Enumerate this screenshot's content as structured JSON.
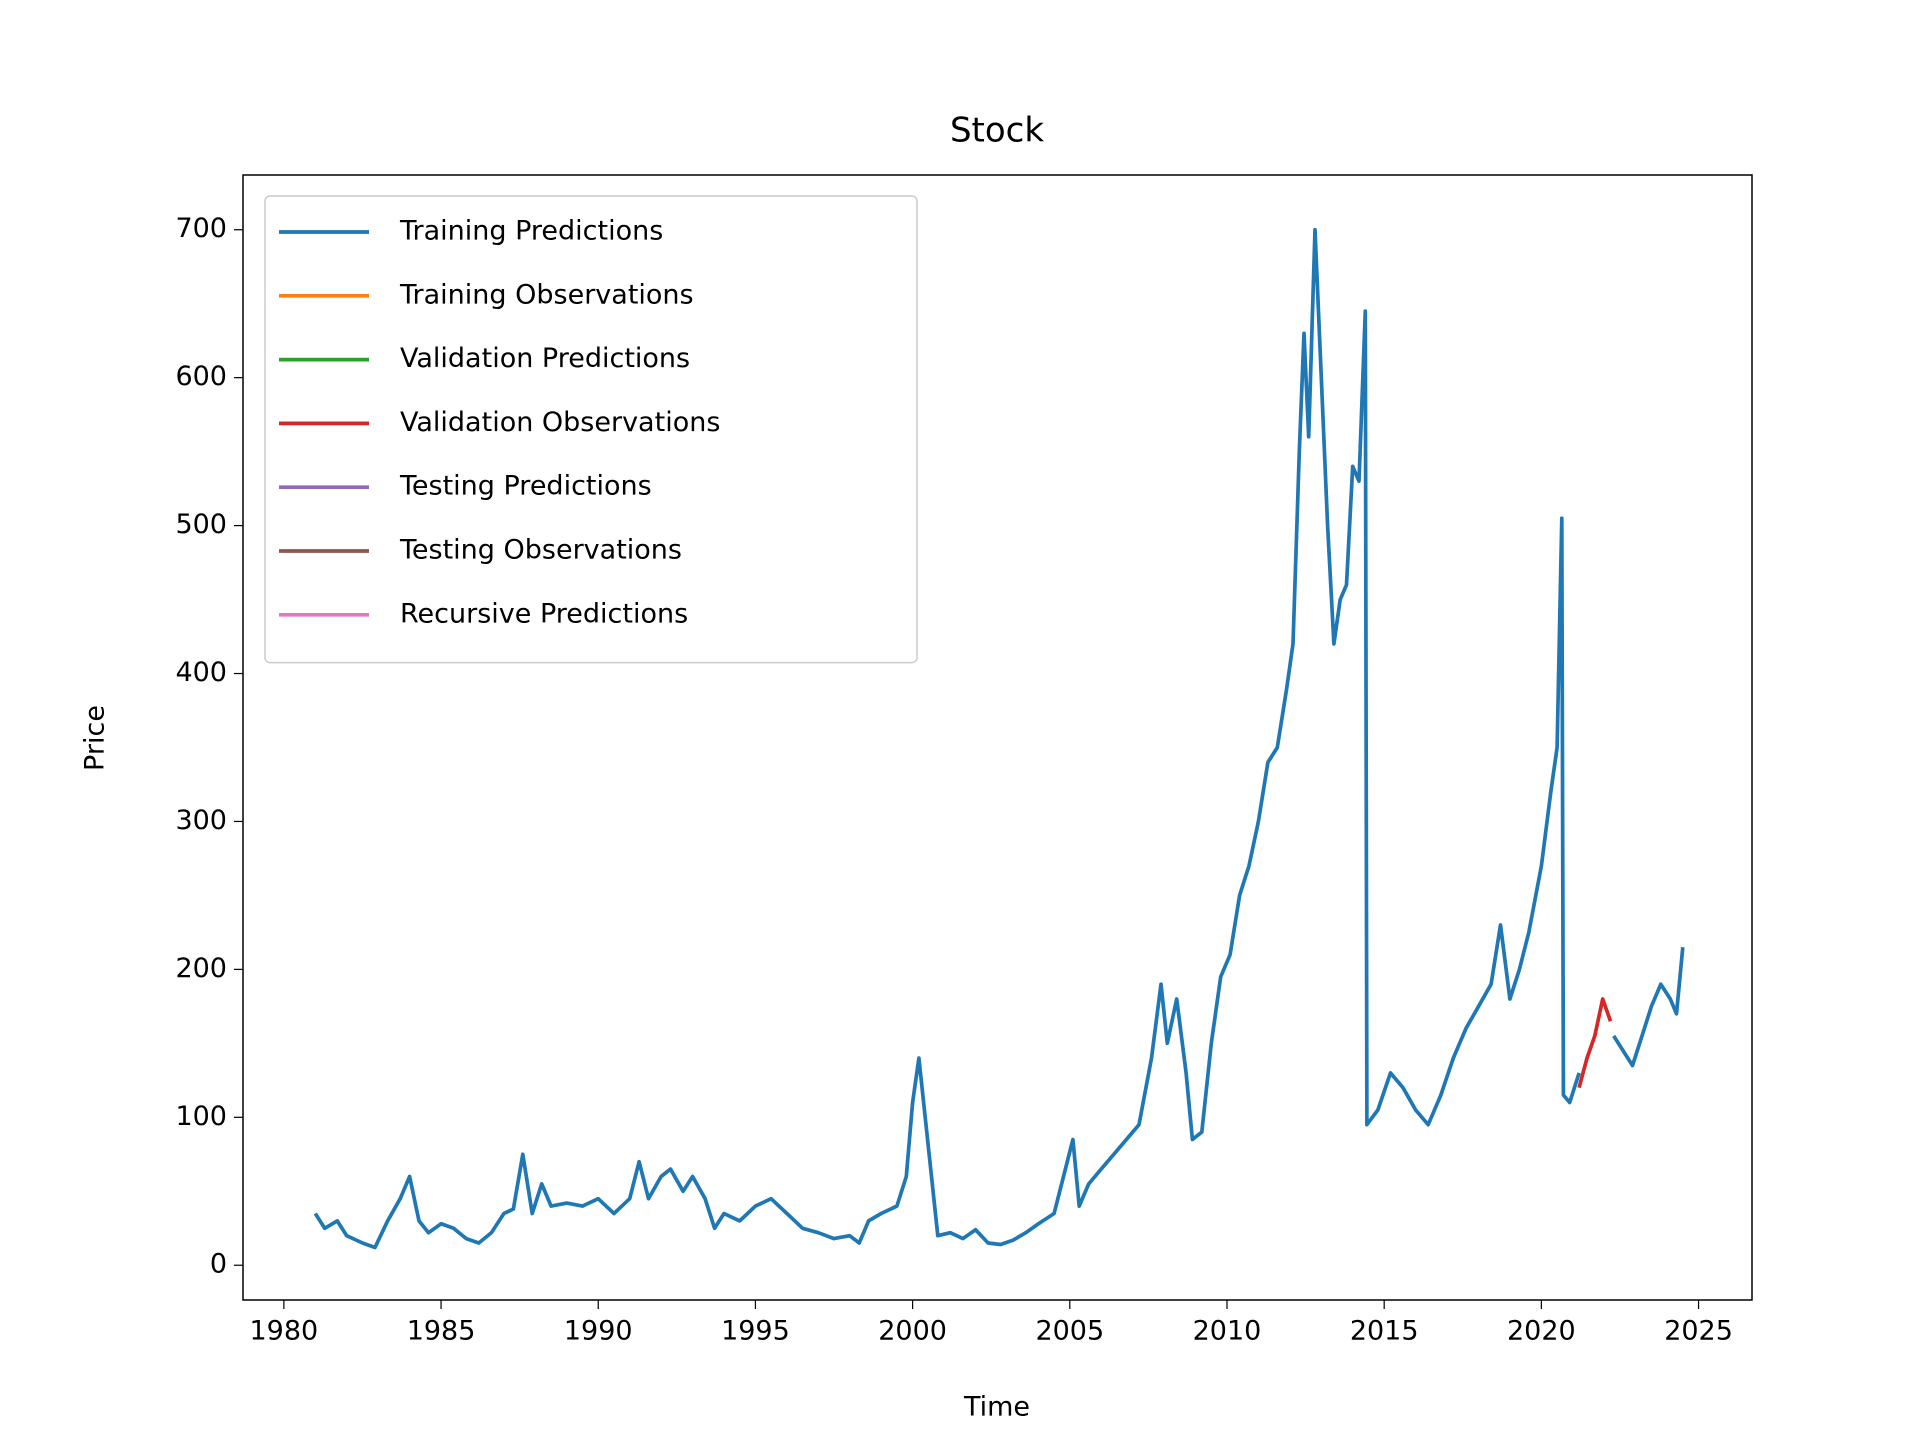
{
  "chart_data": {
    "type": "line",
    "title": "Stock",
    "xlabel": "Time",
    "ylabel": "Price",
    "xlim": [
      1978.7,
      2026.7
    ],
    "ylim": [
      -23.5,
      737
    ],
    "xticks": [
      1980,
      1985,
      1990,
      1995,
      2000,
      2005,
      2010,
      2015,
      2020,
      2025
    ],
    "yticks": [
      0,
      100,
      200,
      300,
      400,
      500,
      600,
      700
    ],
    "legend": "upper left",
    "series": [
      {
        "name": "Training Predictions",
        "color": "#1f77b4",
        "x": [
          1981.0,
          1981.3,
          1981.7,
          1982.0,
          1982.5,
          1982.9,
          1983.3,
          1983.7,
          1984.0,
          1984.3,
          1984.6,
          1985.0,
          1985.4,
          1985.8,
          1986.2,
          1986.6,
          1987.0,
          1987.3,
          1987.6,
          1987.9,
          1988.2,
          1988.5,
          1989.0,
          1989.5,
          1990.0,
          1990.5,
          1991.0,
          1991.3,
          1991.6,
          1992.0,
          1992.3,
          1992.7,
          1993.0,
          1993.4,
          1993.7,
          1994.0,
          1994.5,
          1995.0,
          1995.5,
          1996.0,
          1996.5,
          1997.0,
          1997.5,
          1998.0,
          1998.3,
          1998.6,
          1999.0,
          1999.5,
          1999.8,
          2000.0,
          2000.2,
          2000.4,
          2000.6,
          2000.8,
          2001.2,
          2001.6,
          2002.0,
          2002.4,
          2002.8,
          2003.2,
          2003.6,
          2004.0,
          2004.5,
          2004.8,
          2005.1,
          2005.3,
          2005.6,
          2006.0,
          2006.4,
          2006.8,
          2007.2,
          2007.6,
          2007.9,
          2008.1,
          2008.4,
          2008.7,
          2008.9,
          2009.2,
          2009.5,
          2009.8,
          2010.1,
          2010.4,
          2010.7,
          2011.0,
          2011.3,
          2011.6,
          2011.9,
          2012.1,
          2012.3,
          2012.45,
          2012.6,
          2012.8,
          2013.0,
          2013.2,
          2013.4,
          2013.6,
          2013.8,
          2014.0,
          2014.2,
          2014.4,
          2014.45,
          2014.8,
          2015.2,
          2015.6,
          2016.0,
          2016.4,
          2016.8,
          2017.2,
          2017.6,
          2018.0,
          2018.4,
          2018.7,
          2019.0,
          2019.3,
          2019.6,
          2020.0,
          2020.3,
          2020.5,
          2020.65,
          2020.7,
          2020.9,
          2021.2,
          2021.7,
          2022.3,
          2022.6,
          2022.9,
          2023.2,
          2023.5,
          2023.8,
          2024.1,
          2024.3,
          2024.5
        ],
        "values": [
          35,
          25,
          30,
          20,
          15,
          12,
          30,
          45,
          60,
          30,
          22,
          28,
          25,
          18,
          15,
          22,
          35,
          38,
          75,
          35,
          55,
          40,
          42,
          40,
          45,
          35,
          45,
          70,
          45,
          60,
          65,
          50,
          60,
          45,
          25,
          35,
          30,
          40,
          45,
          35,
          25,
          22,
          18,
          20,
          15,
          30,
          35,
          40,
          60,
          110,
          140,
          100,
          60,
          20,
          22,
          18,
          24,
          15,
          14,
          17,
          22,
          28,
          35,
          60,
          85,
          40,
          55,
          65,
          75,
          85,
          95,
          140,
          190,
          150,
          180,
          130,
          85,
          90,
          150,
          195,
          210,
          250,
          270,
          300,
          340,
          350,
          390,
          420,
          550,
          630,
          560,
          700,
          600,
          500,
          420,
          450,
          460,
          540,
          530,
          645,
          95,
          105,
          130,
          120,
          105,
          95,
          115,
          140,
          160,
          175,
          190,
          230,
          180,
          200,
          225,
          270,
          320,
          350,
          505,
          115,
          110,
          130,
          null,
          155,
          145,
          135,
          155,
          175,
          190,
          180,
          170,
          215
        ]
      },
      {
        "name": "Training Observations",
        "color": "#ff7f0e",
        "x": [],
        "values": []
      },
      {
        "name": "Validation Predictions",
        "color": "#2ca02c",
        "x": [],
        "values": []
      },
      {
        "name": "Validation Observations",
        "color": "#d62728",
        "x": [
          2021.2,
          2021.45,
          2021.7,
          2021.95,
          2022.2
        ],
        "values": [
          120,
          140,
          155,
          180,
          165
        ]
      },
      {
        "name": "Testing Predictions",
        "color": "#9467bd",
        "x": [],
        "values": []
      },
      {
        "name": "Testing Observations",
        "color": "#8c564b",
        "x": [],
        "values": []
      },
      {
        "name": "Recursive Predictions",
        "color": "#e377c2",
        "x": [],
        "values": []
      }
    ]
  }
}
